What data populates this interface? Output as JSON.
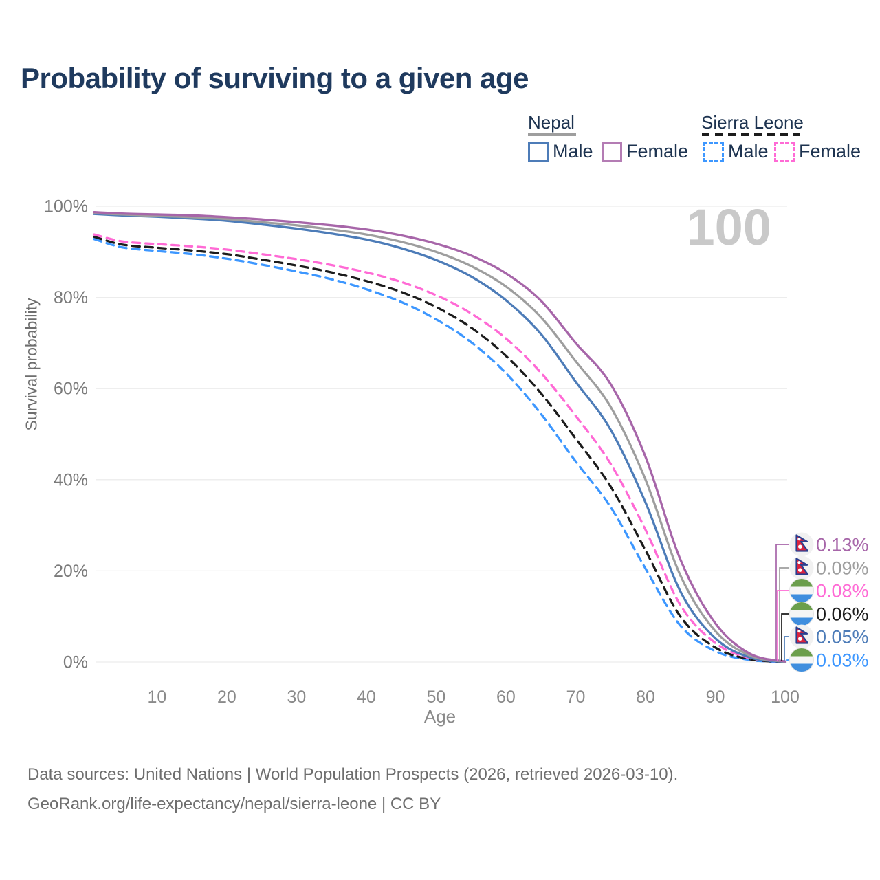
{
  "page": {
    "title": "Probability of surviving to a given age",
    "watermark": "100"
  },
  "legend": {
    "groups": [
      {
        "label": "Nepal",
        "line_style": "solid",
        "line_color": "#9e9e9e",
        "items": [
          {
            "label": "Male",
            "color": "#4d7cb8",
            "dashed": false
          },
          {
            "label": "Female",
            "color": "#b47cb4",
            "dashed": false
          }
        ]
      },
      {
        "label": "Sierra Leone",
        "line_style": "dashed",
        "line_color": "#1c1c1c",
        "items": [
          {
            "label": "Male",
            "color": "#3d97ff",
            "dashed": true
          },
          {
            "label": "Female",
            "color": "#ff6ad5",
            "dashed": true
          }
        ]
      }
    ]
  },
  "chart_data": {
    "type": "line",
    "title": "Probability of surviving to a given age",
    "xlabel": "Age",
    "ylabel": "Survival probability",
    "xlim": [
      1,
      100
    ],
    "ylim": [
      0,
      100
    ],
    "grid": "horizontal",
    "legend_position": "top-right",
    "x_ticks": [
      10,
      20,
      30,
      40,
      50,
      60,
      70,
      80,
      90,
      100
    ],
    "y_ticks": [
      {
        "value": 0,
        "label": "0%"
      },
      {
        "value": 20,
        "label": "20%"
      },
      {
        "value": 40,
        "label": "40%"
      },
      {
        "value": 60,
        "label": "60%"
      },
      {
        "value": 80,
        "label": "80%"
      },
      {
        "value": 100,
        "label": "100%"
      }
    ],
    "ages": [
      1,
      5,
      10,
      15,
      20,
      25,
      30,
      35,
      40,
      45,
      50,
      55,
      60,
      65,
      70,
      75,
      80,
      85,
      90,
      95,
      100
    ],
    "series": [
      {
        "name": "Nepal Female",
        "country": "Nepal",
        "sex": "Female",
        "flag": "nepal",
        "color": "#a766a9",
        "dashed": false,
        "end_label": "0.13%",
        "values": [
          98.7,
          98.4,
          98.2,
          98.0,
          97.6,
          97.1,
          96.5,
          95.8,
          94.9,
          93.6,
          91.8,
          89.2,
          85.3,
          79.3,
          70.0,
          61.0,
          45.0,
          22.5,
          8.5,
          1.8,
          0.13
        ]
      },
      {
        "name": "Nepal Both sexes",
        "country": "Nepal",
        "sex": "Both",
        "flag": "nepal",
        "color": "#9e9e9e",
        "dashed": false,
        "end_label": "0.09%",
        "values": [
          98.5,
          98.2,
          97.9,
          97.6,
          97.2,
          96.5,
          95.8,
          94.9,
          93.8,
          92.2,
          90.0,
          86.9,
          82.4,
          75.7,
          66.0,
          56.0,
          40.0,
          19.0,
          6.8,
          1.4,
          0.09
        ]
      },
      {
        "name": "Sierra Leone Female",
        "country": "Sierra Leone",
        "sex": "Female",
        "flag": "sierra-leone",
        "color": "#ff6ad5",
        "dashed": true,
        "end_label": "0.08%",
        "values": [
          93.8,
          92.3,
          91.7,
          91.2,
          90.5,
          89.5,
          88.4,
          87.1,
          85.5,
          83.4,
          80.5,
          76.5,
          71.0,
          63.5,
          54.0,
          43.5,
          29.0,
          12.5,
          4.2,
          0.85,
          0.08
        ]
      },
      {
        "name": "Sierra Leone Both sexes",
        "country": "Sierra Leone",
        "sex": "Both",
        "flag": "sierra-leone",
        "color": "#1c1c1c",
        "dashed": true,
        "end_label": "0.06%",
        "values": [
          93.3,
          91.6,
          90.9,
          90.3,
          89.5,
          88.3,
          87.0,
          85.5,
          83.6,
          81.2,
          77.9,
          73.4,
          67.2,
          59.0,
          49.0,
          38.5,
          24.5,
          10.0,
          3.2,
          0.6,
          0.06
        ]
      },
      {
        "name": "Nepal Male",
        "country": "Nepal",
        "sex": "Male",
        "flag": "nepal",
        "color": "#4d7cb8",
        "dashed": false,
        "end_label": "0.05%",
        "values": [
          98.3,
          98.0,
          97.7,
          97.3,
          96.8,
          96.0,
          95.1,
          94.0,
          92.7,
          90.8,
          88.2,
          84.6,
          79.4,
          72.0,
          61.5,
          51.0,
          35.0,
          15.5,
          5.2,
          1.0,
          0.05
        ]
      },
      {
        "name": "Sierra Leone Male",
        "country": "Sierra Leone",
        "sex": "Male",
        "flag": "sierra-leone",
        "color": "#3d97ff",
        "dashed": true,
        "end_label": "0.03%",
        "values": [
          92.8,
          91.0,
          90.2,
          89.5,
          88.5,
          87.2,
          85.7,
          84.0,
          81.8,
          79.0,
          75.2,
          70.2,
          63.4,
          54.5,
          44.0,
          34.0,
          20.5,
          8.0,
          2.4,
          0.45,
          0.03
        ]
      }
    ]
  },
  "footer": {
    "line1": "Data sources: United Nations | World Population Prospects (2026, retrieved 2026-03-10).",
    "line2": "GeoRank.org/life-expectancy/nepal/sierra-leone | CC BY"
  }
}
